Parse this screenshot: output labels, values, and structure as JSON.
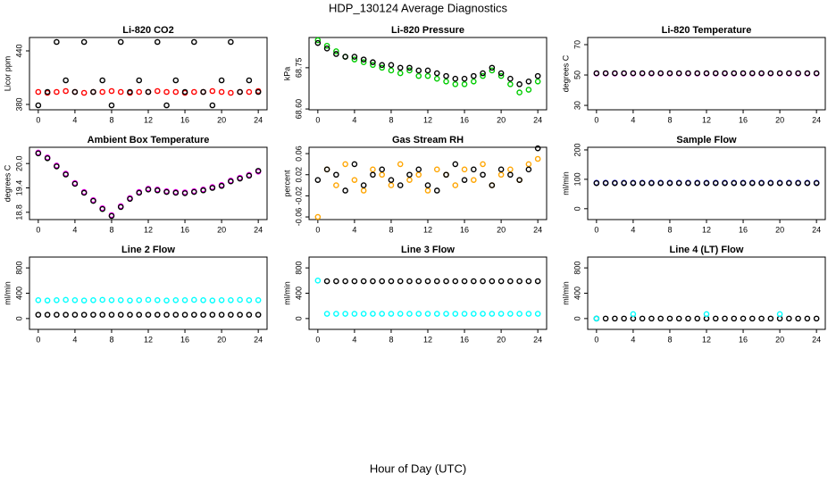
{
  "title": "HDP_130124  Average Diagnostics",
  "xlabel": "Hour of Day (UTC)",
  "chart_data": [
    {
      "type": "scatter",
      "title": "Li-820 CO2",
      "ylabel": "Licor ppm",
      "x": [
        0,
        1,
        2,
        3,
        4,
        5,
        6,
        7,
        8,
        9,
        10,
        11,
        12,
        13,
        14,
        15,
        16,
        17,
        18,
        19,
        20,
        21,
        22,
        23,
        24
      ],
      "xlim": [
        -0.96,
        24.96
      ],
      "xticks": [
        0,
        4,
        8,
        12,
        16,
        20,
        24
      ],
      "ylim": [
        374,
        455
      ],
      "yticks": [
        380,
        440
      ],
      "series": [
        {
          "color": "#ff0000",
          "values": [
            394,
            393,
            394,
            395,
            394,
            393,
            394,
            394,
            395,
            394,
            393,
            394,
            394,
            395,
            394,
            394,
            393,
            394,
            394,
            395,
            394,
            393,
            394,
            394,
            395
          ]
        },
        {
          "color": "#000000",
          "values": [
            379,
            394,
            450,
            407,
            394,
            450,
            394,
            407,
            379,
            450,
            394,
            407,
            394,
            450,
            379,
            407,
            394,
            450,
            394,
            379,
            407,
            450,
            394,
            407,
            394
          ]
        }
      ]
    },
    {
      "type": "scatter",
      "title": "Li-820 Pressure",
      "ylabel": "kPa",
      "x": [
        0,
        1,
        2,
        3,
        4,
        5,
        6,
        7,
        8,
        9,
        10,
        11,
        12,
        13,
        14,
        15,
        16,
        17,
        18,
        19,
        20,
        21,
        22,
        23,
        24
      ],
      "xlim": [
        -0.96,
        24.96
      ],
      "xticks": [
        0,
        4,
        8,
        12,
        16,
        20,
        24
      ],
      "ylim": [
        68.597,
        68.86
      ],
      "yticks": [
        {
          "value": 68.6,
          "label": "68.60"
        },
        {
          "value": 68.75,
          "label": "68.75"
        }
      ],
      "series": [
        {
          "color": "#00cc00",
          "values": [
            68.85,
            68.83,
            68.81,
            68.79,
            68.78,
            68.77,
            68.76,
            68.75,
            68.74,
            68.73,
            68.74,
            68.72,
            68.72,
            68.71,
            68.7,
            68.69,
            68.69,
            68.7,
            68.72,
            68.74,
            68.72,
            68.69,
            68.66,
            68.67,
            68.7
          ]
        },
        {
          "color": "#000000",
          "values": [
            68.84,
            68.82,
            68.8,
            68.79,
            68.79,
            68.78,
            68.77,
            68.76,
            68.76,
            68.75,
            68.75,
            68.74,
            68.74,
            68.73,
            68.72,
            68.71,
            68.71,
            68.72,
            68.73,
            68.75,
            68.73,
            68.71,
            68.69,
            68.7,
            68.72
          ]
        }
      ]
    },
    {
      "type": "scatter",
      "title": "Li-820 Temperature",
      "ylabel": "degrees C",
      "x": [
        0,
        1,
        2,
        3,
        4,
        5,
        6,
        7,
        8,
        9,
        10,
        11,
        12,
        13,
        14,
        15,
        16,
        17,
        18,
        19,
        20,
        21,
        22,
        23,
        24
      ],
      "xlim": [
        -0.96,
        24.96
      ],
      "xticks": [
        0,
        4,
        8,
        12,
        16,
        20,
        24
      ],
      "ylim": [
        27.1,
        74.7
      ],
      "yticks": [
        30,
        50,
        70
      ],
      "series": [
        {
          "color": "#ff00ff",
          "values": [
            51,
            51,
            51,
            51,
            51,
            51,
            51,
            51,
            51,
            51,
            51,
            51,
            51,
            51,
            51,
            51,
            51,
            51,
            51,
            51,
            51,
            51,
            51,
            51,
            51
          ]
        },
        {
          "color": "#000000",
          "values": [
            51.2,
            51.2,
            51.2,
            51.2,
            51.2,
            51.2,
            51.2,
            51.2,
            51.2,
            51.2,
            51.2,
            51.2,
            51.2,
            51.2,
            51.2,
            51.2,
            51.2,
            51.2,
            51.2,
            51.2,
            51.2,
            51.2,
            51.2,
            51.2,
            51.2
          ]
        }
      ]
    },
    {
      "type": "scatter",
      "title": "Ambient Box Temperature",
      "ylabel": "degrees C",
      "x": [
        0,
        1,
        2,
        3,
        4,
        5,
        6,
        7,
        8,
        9,
        10,
        11,
        12,
        13,
        14,
        15,
        16,
        17,
        18,
        19,
        20,
        21,
        22,
        23,
        24
      ],
      "xlim": [
        -0.96,
        24.96
      ],
      "xticks": [
        0,
        4,
        8,
        12,
        16,
        20,
        24
      ],
      "ylim": [
        18.62,
        20.4
      ],
      "yticks": [
        18.8,
        19.4,
        {
          "value": 20,
          "label": "20.0"
        }
      ],
      "series": [
        {
          "color": "#ff00ff",
          "values": [
            20.27,
            20.15,
            19.95,
            19.75,
            19.52,
            19.3,
            19.1,
            18.9,
            18.73,
            18.95,
            19.15,
            19.3,
            19.38,
            19.36,
            19.32,
            19.3,
            19.29,
            19.32,
            19.36,
            19.42,
            19.47,
            19.58,
            19.65,
            19.72,
            19.8
          ]
        },
        {
          "color": "#000000",
          "values": [
            20.25,
            20.13,
            19.93,
            19.73,
            19.5,
            19.28,
            19.08,
            18.88,
            18.71,
            18.93,
            19.13,
            19.28,
            19.36,
            19.34,
            19.3,
            19.28,
            19.27,
            19.3,
            19.34,
            19.4,
            19.45,
            19.56,
            19.63,
            19.7,
            19.82
          ]
        }
      ]
    },
    {
      "type": "scatter",
      "title": "Gas Stream RH",
      "ylabel": "percent",
      "x": [
        0,
        1,
        2,
        3,
        4,
        5,
        6,
        7,
        8,
        9,
        10,
        11,
        12,
        13,
        14,
        15,
        16,
        17,
        18,
        19,
        20,
        21,
        22,
        23,
        24
      ],
      "xlim": [
        -0.96,
        24.96
      ],
      "xticks": [
        0,
        4,
        8,
        12,
        16,
        20,
        24
      ],
      "ylim": [
        -0.065,
        0.072
      ],
      "yticks": [
        -0.06,
        -0.02,
        0.02,
        0.06
      ],
      "series": [
        {
          "color": "#ffa500",
          "values": [
            -0.06,
            0.03,
            0.0,
            0.04,
            0.01,
            -0.01,
            0.03,
            0.02,
            0.0,
            0.04,
            0.01,
            0.02,
            -0.01,
            0.03,
            0.02,
            0.0,
            0.03,
            0.01,
            0.04,
            0.0,
            0.02,
            0.03,
            0.01,
            0.04,
            0.05
          ]
        },
        {
          "color": "#000000",
          "values": [
            0.01,
            0.03,
            0.02,
            -0.01,
            0.04,
            0.0,
            0.02,
            0.03,
            0.01,
            0.0,
            0.02,
            0.03,
            0.0,
            -0.01,
            0.02,
            0.04,
            0.01,
            0.03,
            0.02,
            0.0,
            0.03,
            0.02,
            0.01,
            0.03,
            0.07
          ]
        }
      ]
    },
    {
      "type": "scatter",
      "title": "Sample Flow",
      "ylabel": "ml/min",
      "x": [
        0,
        1,
        2,
        3,
        4,
        5,
        6,
        7,
        8,
        9,
        10,
        11,
        12,
        13,
        14,
        15,
        16,
        17,
        18,
        19,
        20,
        21,
        22,
        23,
        24
      ],
      "xlim": [
        -0.96,
        24.96
      ],
      "xticks": [
        0,
        4,
        8,
        12,
        16,
        20,
        24
      ],
      "ylim": [
        -37,
        209
      ],
      "yticks": [
        0,
        100,
        200
      ],
      "series": [
        {
          "color": "#0000ff",
          "values": [
            88,
            88,
            88,
            88,
            88,
            88,
            88,
            88,
            88,
            88,
            88,
            88,
            88,
            88,
            88,
            88,
            88,
            88,
            88,
            88,
            88,
            88,
            88,
            88,
            88
          ]
        },
        {
          "color": "#000000",
          "values": [
            87,
            87,
            87,
            87,
            87,
            87,
            87,
            87,
            87,
            87,
            87,
            87,
            87,
            87,
            87,
            87,
            87,
            87,
            87,
            87,
            87,
            87,
            87,
            87,
            87
          ]
        }
      ]
    },
    {
      "type": "scatter",
      "title": "Line 2 Flow",
      "ylabel": "ml/min",
      "x": [
        0,
        1,
        2,
        3,
        4,
        5,
        6,
        7,
        8,
        9,
        10,
        11,
        12,
        13,
        14,
        15,
        16,
        17,
        18,
        19,
        20,
        21,
        22,
        23,
        24
      ],
      "xlim": [
        -0.96,
        24.96
      ],
      "xticks": [
        0,
        4,
        8,
        12,
        16,
        20,
        24
      ],
      "ylim": [
        -171,
        971
      ],
      "yticks": [
        0,
        400,
        800
      ],
      "series": [
        {
          "color": "#00ffff",
          "values": [
            290,
            285,
            290,
            295,
            290,
            285,
            290,
            295,
            290,
            290,
            285,
            290,
            295,
            290,
            285,
            290,
            290,
            295,
            290,
            285,
            290,
            290,
            295,
            290,
            290
          ]
        },
        {
          "color": "#000000",
          "values": [
            60,
            60,
            60,
            60,
            60,
            60,
            60,
            60,
            60,
            60,
            60,
            60,
            60,
            60,
            60,
            60,
            60,
            60,
            60,
            60,
            60,
            60,
            60,
            60,
            60
          ]
        }
      ]
    },
    {
      "type": "scatter",
      "title": "Line 3 Flow",
      "ylabel": "ml/min",
      "x": [
        0,
        1,
        2,
        3,
        4,
        5,
        6,
        7,
        8,
        9,
        10,
        11,
        12,
        13,
        14,
        15,
        16,
        17,
        18,
        19,
        20,
        21,
        22,
        23,
        24
      ],
      "xlim": [
        -0.96,
        24.96
      ],
      "xticks": [
        0,
        4,
        8,
        12,
        16,
        20,
        24
      ],
      "ylim": [
        -171,
        971
      ],
      "yticks": [
        0,
        400,
        800
      ],
      "series": [
        {
          "color": "#00ffff",
          "values": [
            600,
            75,
            75,
            75,
            75,
            75,
            75,
            75,
            75,
            75,
            75,
            75,
            75,
            75,
            75,
            75,
            75,
            75,
            75,
            75,
            75,
            75,
            75,
            75,
            75
          ]
        },
        {
          "color": "#000000",
          "values": [
            null,
            590,
            590,
            590,
            590,
            590,
            590,
            590,
            590,
            590,
            590,
            590,
            590,
            590,
            590,
            590,
            590,
            590,
            590,
            590,
            590,
            590,
            590,
            590,
            590
          ]
        }
      ]
    },
    {
      "type": "scatter",
      "title": "Line 4 (LT) Flow",
      "ylabel": "ml/min",
      "x": [
        0,
        1,
        2,
        3,
        4,
        5,
        6,
        7,
        8,
        9,
        10,
        11,
        12,
        13,
        14,
        15,
        16,
        17,
        18,
        19,
        20,
        21,
        22,
        23,
        24
      ],
      "xlim": [
        -0.96,
        24.96
      ],
      "xticks": [
        0,
        4,
        8,
        12,
        16,
        20,
        24
      ],
      "ylim": [
        -171,
        971
      ],
      "yticks": [
        0,
        400,
        800
      ],
      "series": [
        {
          "color": "#000000",
          "values": [
            0,
            0,
            0,
            0,
            0,
            0,
            0,
            0,
            0,
            0,
            0,
            0,
            0,
            0,
            0,
            0,
            0,
            0,
            0,
            0,
            0,
            0,
            0,
            0,
            0
          ]
        },
        {
          "color": "#00ffff",
          "values": [
            0,
            null,
            null,
            null,
            70,
            null,
            null,
            null,
            null,
            null,
            null,
            null,
            70,
            null,
            null,
            null,
            null,
            null,
            null,
            null,
            70,
            null,
            null,
            null,
            null
          ]
        }
      ]
    }
  ]
}
